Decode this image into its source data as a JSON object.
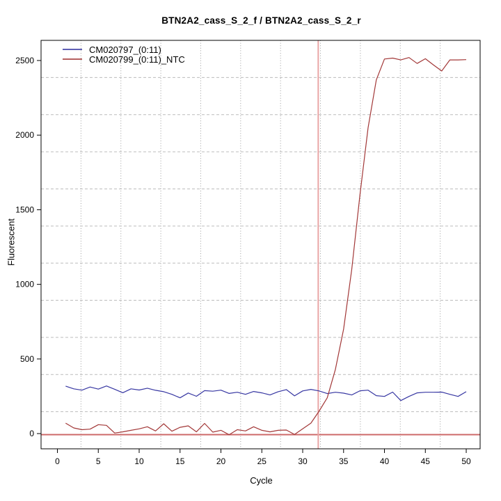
{
  "chart_data": {
    "type": "line",
    "title": "BTN2A2_cass_S_2_f / BTN2A2_cass_S_2_r",
    "xlabel": "Cycle",
    "ylabel": "Fluorescent",
    "x_ticks": [
      0,
      5,
      10,
      15,
      20,
      25,
      30,
      35,
      40,
      45,
      50
    ],
    "y_ticks": [
      0,
      500,
      1000,
      1500,
      2000,
      2500
    ],
    "xlim": [
      -2,
      51.7
    ],
    "ylim": [
      -102,
      2635
    ],
    "grid": {
      "columns": 11,
      "rows": 11,
      "vertical_style": "dotted",
      "horizontal_style": "dashed",
      "vertical_color": "#9c9c9c",
      "horizontal_color": "#bcbcbc"
    },
    "axis_color": "#000000",
    "threshold_line_y": 0,
    "threshold_color": "#cd6a6a",
    "ct_marker_x": 31.9,
    "ct_marker_color": "#e9a6a6",
    "legend_position": "top-left",
    "x": [
      1,
      2,
      3,
      4,
      5,
      6,
      7,
      8,
      9,
      10,
      11,
      12,
      13,
      14,
      15,
      16,
      17,
      18,
      19,
      20,
      21,
      22,
      23,
      24,
      25,
      26,
      27,
      28,
      29,
      30,
      31,
      32,
      33,
      34,
      35,
      36,
      37,
      38,
      39,
      40,
      41,
      42,
      43,
      44,
      45,
      46,
      47,
      48,
      49,
      50
    ],
    "series": [
      {
        "name": "CM020797_(0:11)",
        "color": "#3737a2",
        "values": [
          318,
          300,
          291,
          312,
          298,
          319,
          297,
          274,
          300,
          292,
          304,
          290,
          281,
          263,
          240,
          272,
          250,
          288,
          284,
          291,
          269,
          277,
          263,
          282,
          273,
          259,
          281,
          295,
          253,
          286,
          296,
          286,
          268,
          277,
          271,
          259,
          287,
          291,
          254,
          249,
          278,
          221,
          249,
          273,
          277,
          277,
          278,
          263,
          249,
          281
        ]
      },
      {
        "name": "CM020799_(0:11)_NTC",
        "color": "#a23737",
        "values": [
          70,
          38,
          26,
          30,
          60,
          55,
          4,
          12,
          22,
          32,
          46,
          18,
          66,
          16,
          42,
          52,
          12,
          68,
          10,
          22,
          -8,
          26,
          18,
          46,
          22,
          12,
          22,
          24,
          -6,
          32,
          70,
          150,
          240,
          430,
          700,
          1100,
          1600,
          2050,
          2370,
          2510,
          2516,
          2504,
          2520,
          2480,
          2512,
          2470,
          2430,
          2504,
          2504,
          2506
        ]
      }
    ]
  }
}
